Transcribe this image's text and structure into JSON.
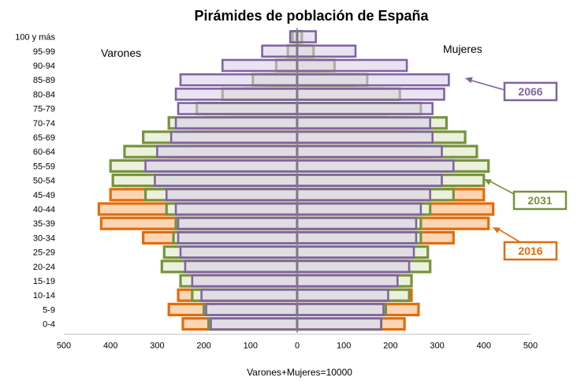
{
  "chart_data": {
    "type": "bar",
    "orientation": "horizontal",
    "title": "Pirámides de población de España",
    "xlabel": "Varones+Mujeres=10000",
    "left_label": "Varones",
    "right_label": "Mujeres",
    "xlim": [
      -500,
      500
    ],
    "xticks": [
      "500",
      "400",
      "300",
      "200",
      "100",
      "0",
      "100",
      "200",
      "300",
      "400",
      "500"
    ],
    "categories": [
      "100 y más",
      "95-99",
      "90-94",
      "85-89",
      "80-84",
      "75-79",
      "70-74",
      "65-69",
      "60-64",
      "55-59",
      "50-54",
      "45-49",
      "40-44",
      "35-39",
      "30-34",
      "25-29",
      "20-24",
      "15-19",
      "10-14",
      "5-9",
      "0-4"
    ],
    "series": [
      {
        "name": "2016",
        "color": "#e36c0a",
        "varones": [
          1,
          5,
          30,
          65,
          115,
          150,
          195,
          235,
          270,
          325,
          370,
          400,
          425,
          420,
          330,
          280,
          240,
          225,
          255,
          275,
          245
        ],
        "mujeres": [
          3,
          15,
          55,
          125,
          185,
          190,
          230,
          260,
          285,
          335,
          375,
          400,
          420,
          410,
          335,
          270,
          235,
          225,
          245,
          260,
          230
        ]
      },
      {
        "name": "2031",
        "color": "#77933c",
        "varones": [
          10,
          20,
          45,
          95,
          160,
          215,
          275,
          330,
          370,
          400,
          395,
          325,
          280,
          260,
          265,
          285,
          290,
          250,
          225,
          200,
          190
        ],
        "mujeres": [
          10,
          35,
          80,
          150,
          220,
          265,
          320,
          360,
          385,
          410,
          400,
          335,
          285,
          265,
          265,
          280,
          285,
          245,
          240,
          190,
          180
        ]
      },
      {
        "name": "2066",
        "color": "#8064a2",
        "varones": [
          15,
          75,
          160,
          250,
          260,
          255,
          260,
          270,
          300,
          325,
          305,
          280,
          260,
          255,
          255,
          250,
          240,
          225,
          205,
          195,
          185
        ],
        "mujeres": [
          40,
          125,
          235,
          325,
          315,
          290,
          285,
          290,
          310,
          335,
          310,
          285,
          265,
          255,
          255,
          250,
          240,
          215,
          195,
          185,
          180
        ]
      }
    ],
    "legend": [
      "2066",
      "2031",
      "2016"
    ]
  }
}
